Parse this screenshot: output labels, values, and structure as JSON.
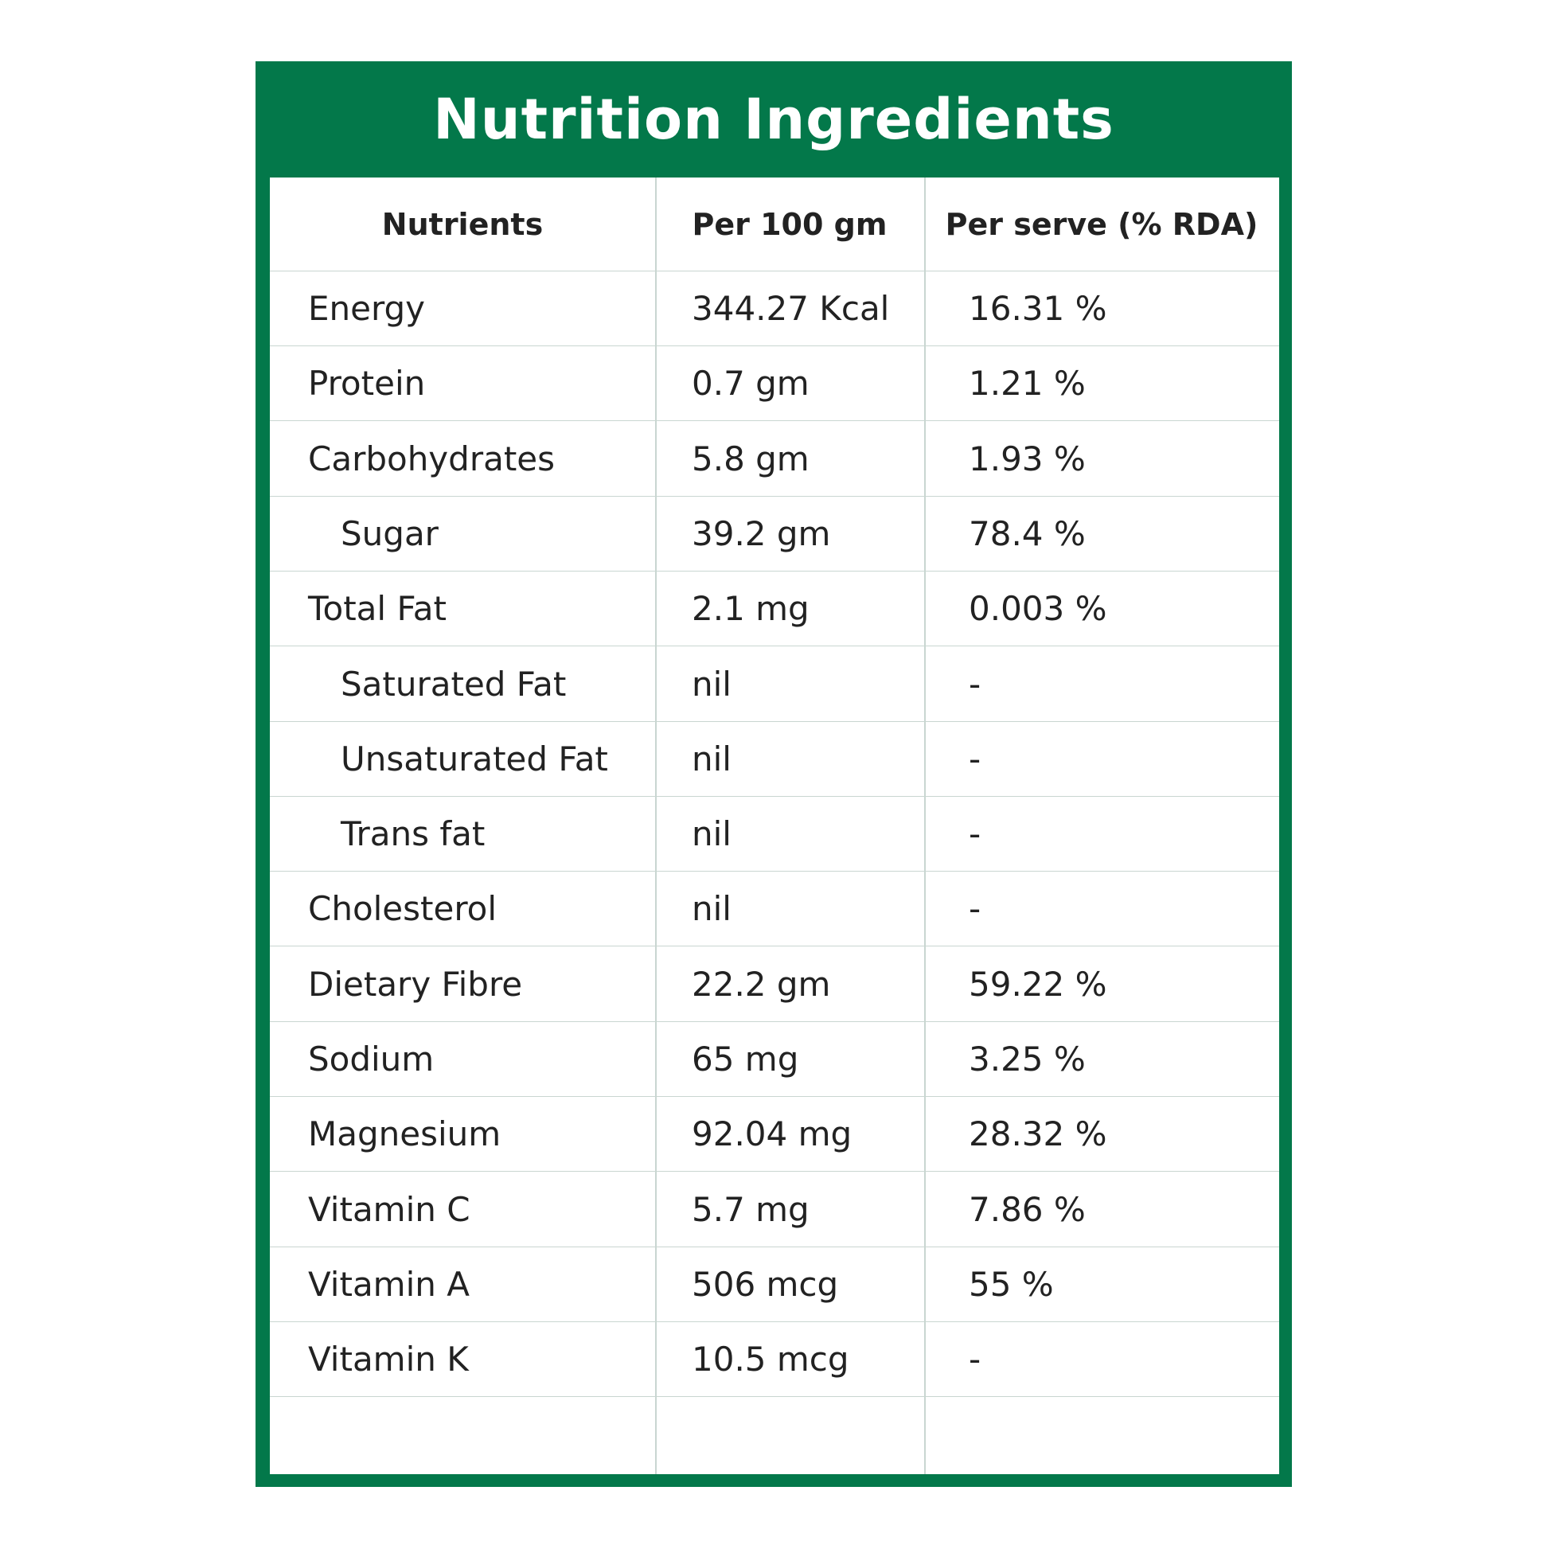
{
  "title": "Nutrition Ingredients",
  "colors": {
    "brand_green": "#03784a",
    "text": "#222222",
    "grid": "#c9d6d1"
  },
  "headers": [
    "Nutrients",
    "Per 100 gm",
    "Per serve (% RDA)"
  ],
  "rows": [
    {
      "nutrient": "Energy",
      "per100": "344.27 Kcal",
      "rda": "16.31 %",
      "indent": false
    },
    {
      "nutrient": "Protein",
      "per100": "0.7 gm",
      "rda": "1.21 %",
      "indent": false
    },
    {
      "nutrient": "Carbohydrates",
      "per100": "5.8 gm",
      "rda": "1.93 %",
      "indent": false
    },
    {
      "nutrient": "Sugar",
      "per100": "39.2 gm",
      "rda": "78.4 %",
      "indent": true
    },
    {
      "nutrient": "Total Fat",
      "per100": "2.1 mg",
      "rda": "0.003 %",
      "indent": false
    },
    {
      "nutrient": "Saturated Fat",
      "per100": "nil",
      "rda": "-",
      "indent": true
    },
    {
      "nutrient": "Unsaturated Fat",
      "per100": "nil",
      "rda": "-",
      "indent": true
    },
    {
      "nutrient": "Trans fat",
      "per100": "nil",
      "rda": "-",
      "indent": true
    },
    {
      "nutrient": "Cholesterol",
      "per100": "nil",
      "rda": "-",
      "indent": false
    },
    {
      "nutrient": "Dietary Fibre",
      "per100": "22.2 gm",
      "rda": "59.22 %",
      "indent": false
    },
    {
      "nutrient": "Sodium",
      "per100": "65 mg",
      "rda": "3.25 %",
      "indent": false
    },
    {
      "nutrient": "Magnesium",
      "per100": "92.04 mg",
      "rda": "28.32 %",
      "indent": false
    },
    {
      "nutrient": "Vitamin C",
      "per100": "5.7 mg",
      "rda": "7.86 %",
      "indent": false
    },
    {
      "nutrient": "Vitamin A",
      "per100": "506 mcg",
      "rda": "55 %",
      "indent": false
    },
    {
      "nutrient": "Vitamin K",
      "per100": "10.5 mcg",
      "rda": "-",
      "indent": false
    }
  ]
}
